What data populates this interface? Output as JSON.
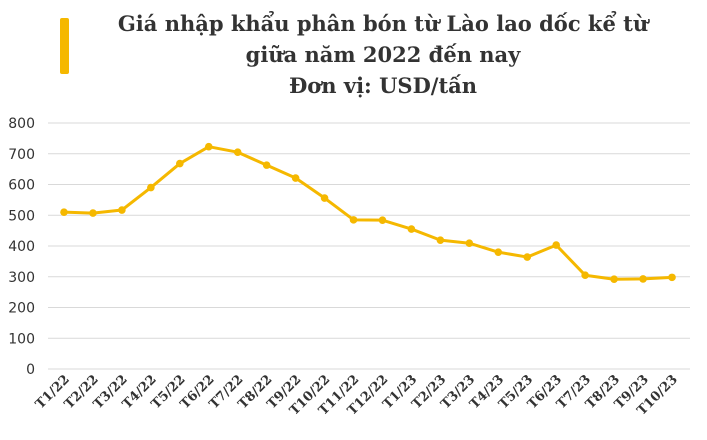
{
  "chart_data": {
    "type": "line",
    "title_lines": [
      "Giá nhập khẩu phân bón từ Lào lao dốc kể từ",
      "giữa năm 2022 đến nay",
      "Đơn vị: USD/tấn"
    ],
    "categories": [
      "T1/22",
      "T2/22",
      "T3/22",
      "T4/22",
      "T5/22",
      "T6/22",
      "T7/22",
      "T8/22",
      "T9/22",
      "T10/22",
      "T11/22",
      "T12/22",
      "T1/23",
      "T2/23",
      "T3/23",
      "T4/23",
      "T5/23",
      "T6/23",
      "T7/23",
      "T8/23",
      "T9/23",
      "T10/23"
    ],
    "values": [
      510,
      507,
      517,
      590,
      668,
      723,
      705,
      663,
      621,
      556,
      485,
      484,
      455,
      419,
      409,
      380,
      364,
      403,
      305,
      292,
      293,
      298
    ],
    "y_ticks": [
      "0",
      "100",
      "200",
      "300",
      "400",
      "500",
      "600",
      "700",
      "800"
    ],
    "ylim": [
      0,
      800
    ],
    "grid": true,
    "legend": "none",
    "line_color": "#f5b800",
    "accent_color": "#f5b800"
  }
}
